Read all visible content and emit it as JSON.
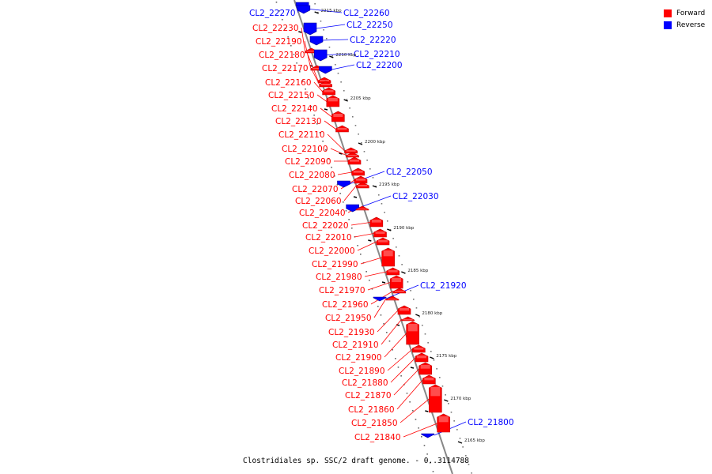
{
  "caption": "Clostridiales sp. SSC/2 draft genome. - 0..3114788",
  "legend": [
    {
      "label": "Forward",
      "color": "#ff0000"
    },
    {
      "label": "Reverse",
      "color": "#0000ff"
    }
  ],
  "colors": {
    "forward": "#ff0000",
    "reverse": "#0000ff",
    "backbone": "#888888"
  },
  "ruler": {
    "unit": "kbp",
    "start_kbp": 2165,
    "end_kbp": 2215,
    "labelled_every_kbp": 5,
    "labels": [
      "2215 kbp",
      "2210 kbp",
      "2205 kbp",
      "2200 kbp",
      "2195 kbp",
      "2190 kbp",
      "2185 kbp",
      "2180 kbp",
      "2175 kbp",
      "2170 kbp",
      "2165 kbp"
    ]
  },
  "genes": [
    {
      "name": "CL2_22270",
      "strand": "reverse"
    },
    {
      "name": "CL2_22260",
      "strand": "reverse"
    },
    {
      "name": "CL2_22250",
      "strand": "reverse"
    },
    {
      "name": "CL2_22230",
      "strand": "forward"
    },
    {
      "name": "CL2_22220",
      "strand": "reverse"
    },
    {
      "name": "CL2_22190",
      "strand": "forward"
    },
    {
      "name": "CL2_22180",
      "strand": "forward"
    },
    {
      "name": "CL2_22210",
      "strand": "reverse"
    },
    {
      "name": "CL2_22200",
      "strand": "reverse"
    },
    {
      "name": "CL2_22170",
      "strand": "forward"
    },
    {
      "name": "CL2_22160",
      "strand": "forward"
    },
    {
      "name": "CL2_22150",
      "strand": "forward"
    },
    {
      "name": "CL2_22140",
      "strand": "forward"
    },
    {
      "name": "CL2_22130",
      "strand": "forward"
    },
    {
      "name": "CL2_22110",
      "strand": "forward"
    },
    {
      "name": "CL2_22100",
      "strand": "forward"
    },
    {
      "name": "CL2_22090",
      "strand": "forward"
    },
    {
      "name": "CL2_22080",
      "strand": "forward"
    },
    {
      "name": "CL2_22050",
      "strand": "reverse"
    },
    {
      "name": "CL2_22070",
      "strand": "forward"
    },
    {
      "name": "CL2_22060",
      "strand": "forward"
    },
    {
      "name": "CL2_22030",
      "strand": "reverse"
    },
    {
      "name": "CL2_22040",
      "strand": "forward"
    },
    {
      "name": "CL2_22020",
      "strand": "forward"
    },
    {
      "name": "CL2_22010",
      "strand": "forward"
    },
    {
      "name": "CL2_22000",
      "strand": "forward"
    },
    {
      "name": "CL2_21990",
      "strand": "forward"
    },
    {
      "name": "CL2_21980",
      "strand": "forward"
    },
    {
      "name": "CL2_21920",
      "strand": "reverse"
    },
    {
      "name": "CL2_21970",
      "strand": "forward"
    },
    {
      "name": "CL2_21960",
      "strand": "forward"
    },
    {
      "name": "CL2_21950",
      "strand": "forward"
    },
    {
      "name": "CL2_21930",
      "strand": "forward"
    },
    {
      "name": "CL2_21910",
      "strand": "forward"
    },
    {
      "name": "CL2_21900",
      "strand": "forward"
    },
    {
      "name": "CL2_21890",
      "strand": "forward"
    },
    {
      "name": "CL2_21880",
      "strand": "forward"
    },
    {
      "name": "CL2_21870",
      "strand": "forward"
    },
    {
      "name": "CL2_21860",
      "strand": "forward"
    },
    {
      "name": "CL2_21850",
      "strand": "forward"
    },
    {
      "name": "CL2_21800",
      "strand": "reverse"
    },
    {
      "name": "CL2_21840",
      "strand": "forward"
    }
  ]
}
